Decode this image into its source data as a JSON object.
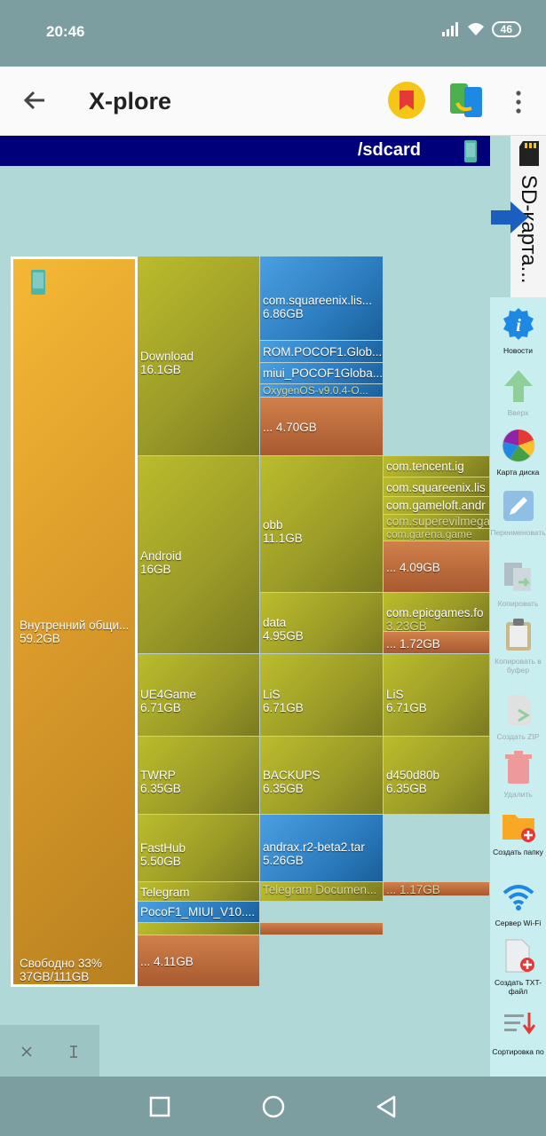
{
  "status": {
    "time": "20:46",
    "battery": "46"
  },
  "appbar": {
    "title": "X-plore"
  },
  "path": "/sdcard",
  "sd_tab": "SD-карта...",
  "map": {
    "root": {
      "label": "Внутренний общи...",
      "size": "59.2GB",
      "free_label": "Свободно 33%",
      "free_size": "37GB/111GB"
    },
    "download": {
      "name": "Download",
      "size": "16.1GB",
      "square": {
        "name": "com.squareenix.lis...",
        "size": "6.86GB"
      },
      "rom": "ROM.POCOF1.Glob...",
      "miui": "miui_POCOF1Globa...",
      "oxy": "OxygenOS-v9.0.4-O...",
      "more": "... 4.70GB"
    },
    "android": {
      "name": "Android",
      "size": "16GB",
      "obb": {
        "name": "obb",
        "size": "11.1GB"
      },
      "tencent": "com.tencent.ig",
      "squareenix": "com.squareenix.lis",
      "gameloft": "com.gameloft.andr",
      "supercell": "com.superevilmega",
      "garena": "com.garena.game",
      "obb_more": "... 4.09GB",
      "data": {
        "name": "data",
        "size": "4.95GB"
      },
      "epic": {
        "name": "com.epicgames.fo",
        "size": "3.23GB"
      },
      "data_more": "... 1.72GB"
    },
    "ue4": {
      "name": "UE4Game",
      "size": "6.71GB",
      "lis1": "LiS",
      "lis1_size": "6.71GB",
      "lis2": "LiS",
      "lis2_size": "6.71GB"
    },
    "twrp": {
      "name": "TWRP",
      "size": "6.35GB",
      "backups": "BACKUPS",
      "backups_size": "6.35GB",
      "d450": "d450d80b",
      "d450_size": "6.35GB"
    },
    "fasthub": {
      "name": "FastHub",
      "size": "5.50GB",
      "andrax": "andrax.r2-beta2.tar",
      "andrax_size": "5.26GB"
    },
    "telegram": {
      "name": "Telegram",
      "docs": "Telegram Documen...",
      "more": "... 1.17GB"
    },
    "poco": "PocoF1_MIUI_V10....",
    "bottom_more": "... 4.11GB"
  },
  "side": [
    {
      "label": "Новости",
      "icon": "info-icon"
    },
    {
      "label": "Вверх",
      "icon": "up-arrow-icon"
    },
    {
      "label": "Карта диска",
      "icon": "disk-map-icon"
    },
    {
      "label": "Переименовать",
      "icon": "rename-icon"
    },
    {
      "label": "Копировать",
      "icon": "copy-icon"
    },
    {
      "label": "Копировать в буфер",
      "icon": "clipboard-icon"
    },
    {
      "label": "Создать ZIP",
      "icon": "zip-icon"
    },
    {
      "label": "Удалить",
      "icon": "trash-icon"
    },
    {
      "label": "Создать папку",
      "icon": "new-folder-icon"
    },
    {
      "label": "Сервер Wi-Fi",
      "icon": "wifi-icon"
    },
    {
      "label": "Создать TXT-файл",
      "icon": "new-txt-icon"
    },
    {
      "label": "Сортировка по",
      "icon": "sort-icon"
    }
  ]
}
